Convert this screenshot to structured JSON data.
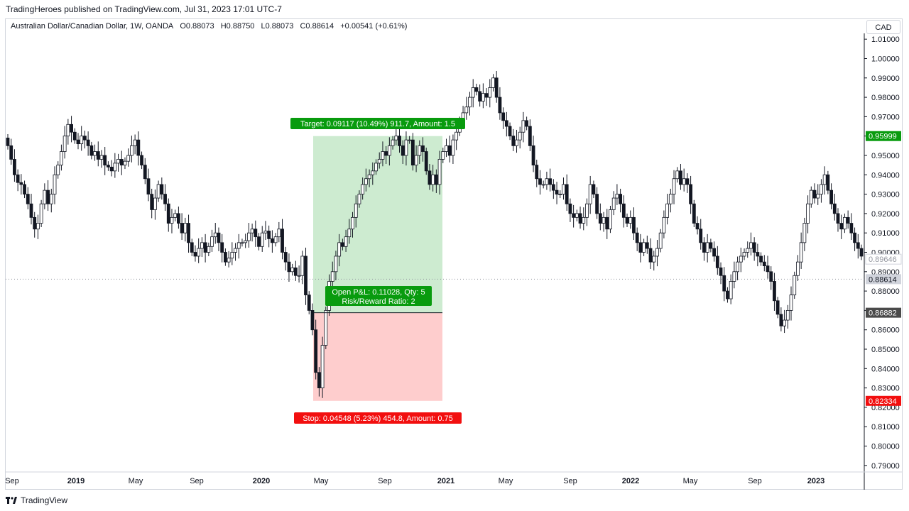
{
  "header": {
    "published_text": "TradingHeroes published on TradingView.com, Jul 31, 2023 17:01 UTC-7"
  },
  "symbol_info": {
    "name": "Australian Dollar/Canadian Dollar, 1W, OANDA",
    "open": "O0.88073",
    "high": "H0.88750",
    "low": "L0.88073",
    "close": "C0.88614",
    "change": "+0.00541 (+0.61%)"
  },
  "currency_button": "CAD",
  "footer": {
    "logo_text": "TradingView"
  },
  "colors": {
    "up_candle": "#ffffff",
    "down_candle": "#131722",
    "target_zone": "#cdebd0",
    "stop_zone": "#fecdcd",
    "green_label": "#089b0e",
    "red_label": "#f20f0f",
    "dark_label": "#4a4a4a"
  },
  "chart_data": {
    "type": "candlestick",
    "instrument": "AUD/CAD",
    "timeframe": "1W",
    "x_tick_labels": [
      "Sep",
      "2019",
      "May",
      "Sep",
      "2020",
      "May",
      "Sep",
      "2021",
      "May",
      "Sep",
      "2022",
      "May",
      "Sep",
      "2023"
    ],
    "y_range": [
      0.787,
      1.013
    ],
    "y_tick_values": [
      0.79,
      0.8,
      0.81,
      0.82,
      0.83,
      0.84,
      0.85,
      0.86,
      0.87,
      0.88,
      0.89,
      0.9,
      0.91,
      0.92,
      0.93,
      0.94,
      0.95,
      0.96,
      0.97,
      0.98,
      0.99,
      1.0,
      1.01
    ],
    "y_tick_labels": [
      "0.79000",
      "0.80000",
      "0.81000",
      "0.82000",
      "0.83000",
      "0.84000",
      "0.85000",
      "0.86000",
      "0.87000",
      "0.88000",
      "0.89000",
      "0.90000",
      "0.91000",
      "0.92000",
      "0.93000",
      "0.94000",
      "0.95000",
      "0.96000",
      "0.97000",
      "0.98000",
      "0.99000",
      "1.00000",
      "1.01000"
    ],
    "price_labels": [
      {
        "value": 0.95999,
        "text": "0.95999",
        "style": "green"
      },
      {
        "value": 0.89646,
        "text": "0.89646",
        "style": "outline"
      },
      {
        "value": 0.88614,
        "text": "0.88614",
        "style": "gray"
      },
      {
        "value": 0.86882,
        "text": "0.86882",
        "style": "dark"
      },
      {
        "value": 0.82334,
        "text": "0.82334",
        "style": "red"
      }
    ],
    "current_price": 0.88614,
    "position": {
      "entry": 0.86882,
      "target": 0.95999,
      "stop": 0.82334,
      "target_text": "Target: 0.09117 (10.49%) 911.7, Amount: 1.5",
      "stop_text": "Stop: 0.04548 (5.23%) 454.8, Amount: 0.75",
      "pnl_text": "Open P&L: 0.11028, Qty: 5",
      "ratio_text": "Risk/Reward Ratio: 2"
    },
    "candles_close": [
      0.955,
      0.948,
      0.94,
      0.936,
      0.935,
      0.93,
      0.925,
      0.918,
      0.912,
      0.915,
      0.925,
      0.932,
      0.925,
      0.93,
      0.94,
      0.945,
      0.952,
      0.96,
      0.966,
      0.962,
      0.958,
      0.956,
      0.96,
      0.958,
      0.955,
      0.95,
      0.952,
      0.948,
      0.95,
      0.945,
      0.944,
      0.942,
      0.946,
      0.948,
      0.945,
      0.947,
      0.95,
      0.955,
      0.958,
      0.95,
      0.945,
      0.938,
      0.93,
      0.922,
      0.928,
      0.935,
      0.93,
      0.925,
      0.915,
      0.918,
      0.92,
      0.915,
      0.91,
      0.915,
      0.905,
      0.9,
      0.898,
      0.902,
      0.905,
      0.9,
      0.903,
      0.908,
      0.91,
      0.905,
      0.9,
      0.895,
      0.897,
      0.9,
      0.902,
      0.905,
      0.905,
      0.906,
      0.91,
      0.912,
      0.908,
      0.903,
      0.91,
      0.911,
      0.907,
      0.905,
      0.908,
      0.912,
      0.9,
      0.895,
      0.89,
      0.892,
      0.888,
      0.888,
      0.898,
      0.878,
      0.87,
      0.86,
      0.838,
      0.83,
      0.852,
      0.87,
      0.885,
      0.89,
      0.898,
      0.905,
      0.903,
      0.908,
      0.912,
      0.918,
      0.925,
      0.93,
      0.935,
      0.938,
      0.94,
      0.942,
      0.946,
      0.948,
      0.952,
      0.95,
      0.955,
      0.958,
      0.96,
      0.955,
      0.95,
      0.958,
      0.958,
      0.945,
      0.95,
      0.955,
      0.952,
      0.942,
      0.935,
      0.94,
      0.935,
      0.948,
      0.952,
      0.955,
      0.95,
      0.958,
      0.962,
      0.968,
      0.972,
      0.975,
      0.98,
      0.985,
      0.983,
      0.978,
      0.982,
      0.98,
      0.985,
      0.99,
      0.98,
      0.972,
      0.968,
      0.965,
      0.96,
      0.955,
      0.958,
      0.962,
      0.968,
      0.965,
      0.955,
      0.945,
      0.938,
      0.935,
      0.935,
      0.938,
      0.935,
      0.932,
      0.93,
      0.93,
      0.935,
      0.925,
      0.92,
      0.918,
      0.92,
      0.915,
      0.918,
      0.925,
      0.935,
      0.93,
      0.92,
      0.915,
      0.918,
      0.912,
      0.922,
      0.928,
      0.93,
      0.925,
      0.918,
      0.915,
      0.918,
      0.91,
      0.905,
      0.9,
      0.905,
      0.902,
      0.895,
      0.898,
      0.902,
      0.91,
      0.918,
      0.925,
      0.93,
      0.938,
      0.942,
      0.935,
      0.938,
      0.935,
      0.925,
      0.915,
      0.912,
      0.905,
      0.9,
      0.905,
      0.902,
      0.898,
      0.892,
      0.888,
      0.88,
      0.876,
      0.885,
      0.89,
      0.895,
      0.898,
      0.9,
      0.902,
      0.905,
      0.9,
      0.898,
      0.895,
      0.893,
      0.89,
      0.885,
      0.875,
      0.868,
      0.862,
      0.865,
      0.87,
      0.878,
      0.888,
      0.895,
      0.905,
      0.915,
      0.925,
      0.932,
      0.928,
      0.93,
      0.935,
      0.94,
      0.932,
      0.925,
      0.92,
      0.915,
      0.912,
      0.918,
      0.915,
      0.91,
      0.905,
      0.902,
      0.898
    ]
  }
}
